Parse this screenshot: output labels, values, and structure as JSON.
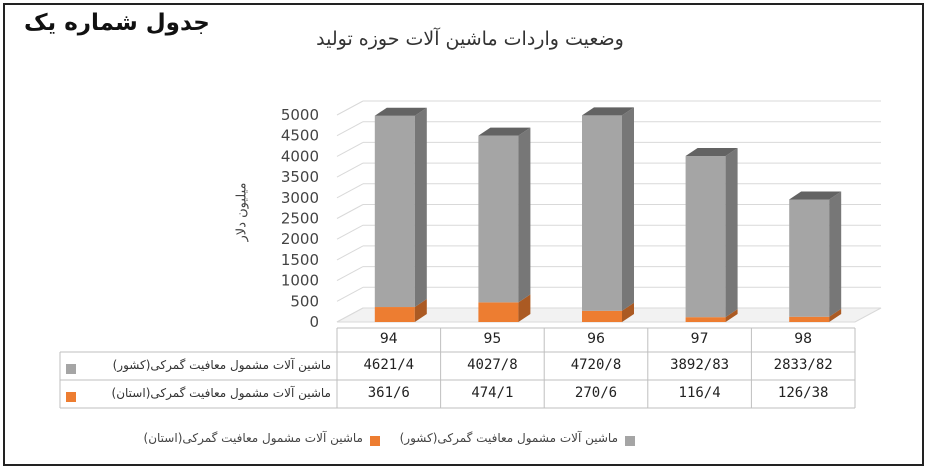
{
  "label_tag": "جدول شماره یک",
  "chart_data": {
    "type": "bar",
    "stacked": true,
    "three_d": true,
    "title": "وضعیت واردات ماشین آلات  حوزه تولید",
    "ylabel": "میلیون دلار",
    "xlabel": "",
    "ylim": [
      0,
      5000
    ],
    "y_ticks": [
      "0",
      "500",
      "1000",
      "1500",
      "2000",
      "2500",
      "3000",
      "3500",
      "4000",
      "4500",
      "5000"
    ],
    "categories": [
      "94",
      "95",
      "96",
      "97",
      "98"
    ],
    "series": [
      {
        "name": "ماشین آلات مشمول معافیت گمرکی(استان)",
        "color": "#ed7d31",
        "values": [
          361.6,
          474.1,
          270.6,
          116.4,
          126.38
        ],
        "display": [
          "361/6",
          "474/1",
          "270/6",
          "116/4",
          "126/38"
        ]
      },
      {
        "name": "ماشین آلات مشمول معافیت گمرکی(کشور)",
        "color": "#a5a5a5",
        "values": [
          4621.4,
          4027.8,
          4720.8,
          3892.83,
          2833.82
        ],
        "display": [
          "4621/4",
          "4027/8",
          "4720/8",
          "3892/83",
          "2833/82"
        ]
      }
    ],
    "legend_position": "bottom",
    "data_table": true,
    "grid": true
  }
}
